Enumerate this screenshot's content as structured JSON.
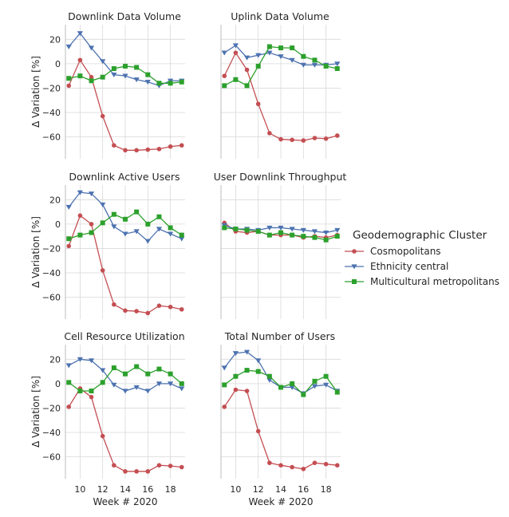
{
  "chart_data": {
    "type": "line",
    "xlabel": "Week # 2020",
    "ylabel": "Δ Variation [%]",
    "xlim": [
      8.7,
      19.3
    ],
    "ylim": [
      -78,
      32
    ],
    "xticks": [
      10,
      12,
      14,
      16,
      18
    ],
    "yticks": [
      20,
      0,
      -20,
      -40,
      -60
    ],
    "grid": true,
    "x": [
      9,
      10,
      11,
      12,
      13,
      14,
      15,
      16,
      17,
      18,
      19
    ],
    "legend": {
      "title": "Geodemographic Cluster",
      "placement": "right",
      "entries": [
        "Cosmopolitans",
        "Ethnicity central",
        "Multicultural metropolitans"
      ]
    },
    "series_styles": [
      {
        "name": "Cosmopolitans",
        "color": "#c44e52",
        "marker": "circle"
      },
      {
        "name": "Ethnicity central",
        "color": "#4c72b0",
        "marker": "triangle-down"
      },
      {
        "name": "Multicultural metropolitans",
        "color": "#2ca02c",
        "marker": "square"
      }
    ],
    "panels": [
      {
        "title": "Downlink Data Volume",
        "series": [
          {
            "name": "Cosmopolitans",
            "values": [
              -18,
              3,
              -11,
              -43,
              -67,
              -71,
              -71,
              -70.5,
              -70,
              -68,
              -67
            ]
          },
          {
            "name": "Ethnicity central",
            "values": [
              14,
              25,
              13,
              2,
              -9,
              -10,
              -13,
              -15,
              -18,
              -14,
              -14
            ]
          },
          {
            "name": "Multicultural metropolitans",
            "values": [
              -12,
              -10,
              -14,
              -11,
              -4,
              -2,
              -3,
              -9,
              -16,
              -16,
              -15
            ]
          }
        ]
      },
      {
        "title": "Uplink Data Volume",
        "series": [
          {
            "name": "Cosmopolitans",
            "values": [
              -10,
              9,
              -5,
              -33,
              -57,
              -62,
              -62.5,
              -63,
              -61,
              -61.5,
              -59
            ]
          },
          {
            "name": "Ethnicity central",
            "values": [
              9,
              15,
              5,
              7,
              9,
              6,
              3,
              -1,
              -1,
              -1,
              0
            ]
          },
          {
            "name": "Multicultural metropolitans",
            "values": [
              -18,
              -13,
              -18,
              -2,
              14,
              13,
              13,
              6,
              3,
              -2,
              -4
            ]
          }
        ]
      },
      {
        "title": "Downlink Active Users",
        "series": [
          {
            "name": "Cosmopolitans",
            "values": [
              -18,
              7,
              0,
              -38,
              -66,
              -71,
              -71.5,
              -73,
              -67,
              -68,
              -70
            ]
          },
          {
            "name": "Ethnicity central",
            "values": [
              14,
              26,
              25,
              16,
              -2,
              -8,
              -6,
              -14,
              -4,
              -8,
              -12
            ]
          },
          {
            "name": "Multicultural metropolitans",
            "values": [
              -12,
              -9,
              -7,
              1,
              8,
              4,
              10,
              0,
              6,
              -3,
              -9
            ]
          }
        ]
      },
      {
        "title": "User Downlink Throughput",
        "series": [
          {
            "name": "Cosmopolitans",
            "values": [
              1,
              -6,
              -7,
              -6,
              -9,
              -9,
              -9,
              -11,
              -10,
              -11,
              -9
            ]
          },
          {
            "name": "Ethnicity central",
            "values": [
              -1,
              -4,
              -4,
              -5,
              -3,
              -3,
              -4,
              -5,
              -6,
              -7,
              -5
            ]
          },
          {
            "name": "Multicultural metropolitans",
            "values": [
              -3,
              -4,
              -5,
              -6,
              -9,
              -7,
              -9,
              -10,
              -11,
              -13,
              -10
            ]
          }
        ]
      },
      {
        "title": "Cell Resource Utilization",
        "series": [
          {
            "name": "Cosmopolitans",
            "values": [
              -19,
              -4,
              -11,
              -43,
              -67,
              -72,
              -72,
              -72,
              -67,
              -67.5,
              -68.5
            ]
          },
          {
            "name": "Ethnicity central",
            "values": [
              15,
              20,
              19,
              11,
              -1,
              -6,
              -3,
              -6,
              0,
              0,
              -4
            ]
          },
          {
            "name": "Multicultural metropolitans",
            "values": [
              1,
              -6,
              -6,
              1,
              13,
              8,
              14,
              8,
              12,
              8,
              0
            ]
          }
        ]
      },
      {
        "title": "Total Number of Users",
        "series": [
          {
            "name": "Cosmopolitans",
            "values": [
              -19,
              -5,
              -6,
              -39,
              -65,
              -67,
              -68.5,
              -70,
              -65,
              -66,
              -67
            ]
          },
          {
            "name": "Ethnicity central",
            "values": [
              13,
              25,
              26,
              19,
              3,
              -3,
              -3,
              -8,
              -2,
              -1,
              -6
            ]
          },
          {
            "name": "Multicultural metropolitans",
            "values": [
              -1,
              6,
              11,
              10,
              6,
              -3,
              0,
              -9,
              2,
              6,
              -7
            ]
          }
        ]
      }
    ]
  }
}
